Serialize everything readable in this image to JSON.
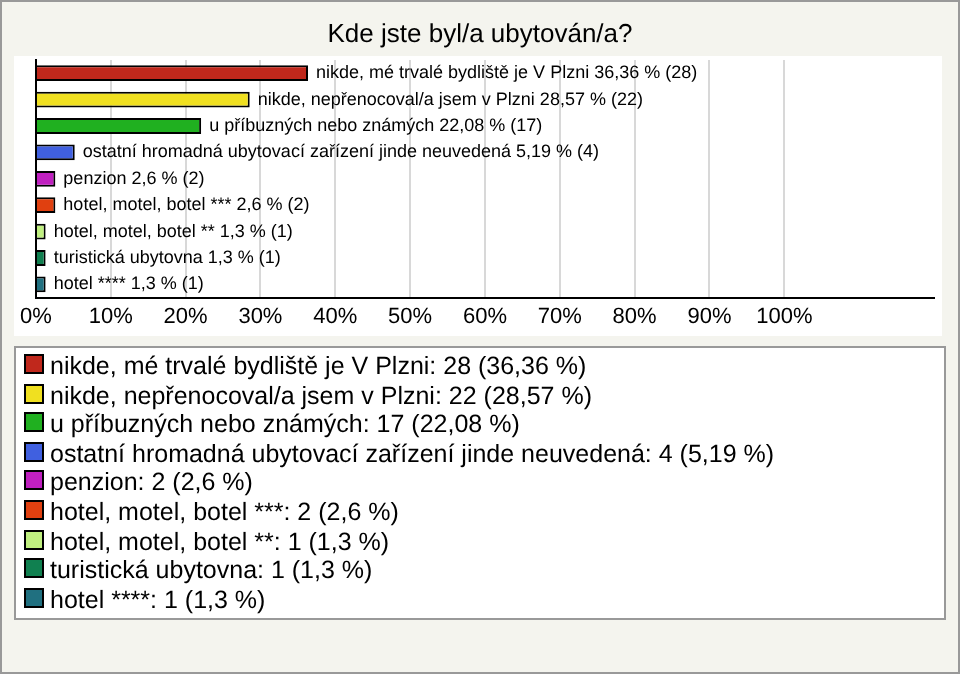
{
  "chart_data": {
    "type": "bar",
    "orientation": "horizontal",
    "stacked": true,
    "title": "Kde jste byl/a ubytován/a?",
    "categories": [
      null,
      null,
      null,
      null,
      null,
      null,
      null,
      null,
      null
    ],
    "series": [
      {
        "name": "nikde, mé trvalé bydliště je V Plzni: 28 (36,36 %)",
        "color": "#c0281c",
        "values": [
          36.36,
          null,
          null,
          null,
          null,
          null,
          null,
          null,
          null
        ],
        "value_labels": [
          "nikde, mé trvalé bydliště je V Plzni 36,36 % (28)",
          null,
          null,
          null,
          null,
          null,
          null,
          null,
          null
        ]
      },
      {
        "name": "nikde, nepřenocoval/a jsem v Plzni: 22 (28,57 %)",
        "color": "#f0e020",
        "values": [
          null,
          28.57,
          null,
          null,
          null,
          null,
          null,
          null,
          null
        ],
        "value_labels": [
          null,
          "nikde, nepřenocoval/a jsem v Plzni 28,57 % (22)",
          null,
          null,
          null,
          null,
          null,
          null,
          null
        ]
      },
      {
        "name": "u příbuzných nebo známých: 17 (22,08 %)",
        "color": "#20b020",
        "values": [
          null,
          null,
          22.08,
          null,
          null,
          null,
          null,
          null,
          null
        ],
        "value_labels": [
          null,
          null,
          "u příbuzných nebo známých 22,08 % (17)",
          null,
          null,
          null,
          null,
          null,
          null
        ]
      },
      {
        "name": "ostatní hromadná ubytovací zařízení jinde neuvedená: 4 (5,19 %)",
        "color": "#4060e0",
        "values": [
          null,
          null,
          null,
          5.19,
          null,
          null,
          null,
          null,
          null
        ],
        "value_labels": [
          null,
          null,
          null,
          "ostatní hromadná ubytovací zařízení jinde neuvedená 5,19 % (4)",
          null,
          null,
          null,
          null,
          null
        ]
      },
      {
        "name": "penzion: 2 (2,6 %)",
        "color": "#c020c0",
        "values": [
          null,
          null,
          null,
          null,
          2.6,
          null,
          null,
          null,
          null
        ],
        "value_labels": [
          null,
          null,
          null,
          null,
          "penzion 2,6 % (2)",
          null,
          null,
          null,
          null
        ]
      },
      {
        "name": "hotel, motel, botel ***: 2 (2,6 %)",
        "color": "#e04010",
        "values": [
          null,
          null,
          null,
          null,
          null,
          2.6,
          null,
          null,
          null
        ],
        "value_labels": [
          null,
          null,
          null,
          null,
          null,
          "hotel, motel, botel *** 2,6 % (2)",
          null,
          null,
          null
        ]
      },
      {
        "name": "hotel, motel, botel **: 1 (1,3 %)",
        "color": "#c0f080",
        "values": [
          null,
          null,
          null,
          null,
          null,
          null,
          1.3,
          null,
          null
        ],
        "value_labels": [
          null,
          null,
          null,
          null,
          null,
          null,
          "hotel, motel, botel ** 1,3 % (1)",
          null,
          null
        ]
      },
      {
        "name": "turistická ubytovna: 1 (1,3 %)",
        "color": "#108050",
        "values": [
          null,
          null,
          null,
          null,
          null,
          null,
          null,
          1.3,
          null
        ],
        "value_labels": [
          null,
          null,
          null,
          null,
          null,
          null,
          null,
          "turistická ubytovna 1,3 % (1)",
          null
        ]
      },
      {
        "name": "hotel ****: 1 (1,3 %)",
        "color": "#207080",
        "values": [
          null,
          null,
          null,
          null,
          null,
          null,
          null,
          null,
          1.3
        ],
        "value_labels": [
          null,
          null,
          null,
          null,
          null,
          null,
          null,
          null,
          "hotel **** 1,3 % (1)"
        ]
      }
    ],
    "xlim": [
      0,
      120
    ],
    "xticks": [
      {
        "value": 0,
        "label": "0%"
      },
      {
        "value": 10,
        "label": "10%"
      },
      {
        "value": 20,
        "label": "20%"
      },
      {
        "value": 30,
        "label": "30%"
      },
      {
        "value": 40,
        "label": "40%"
      },
      {
        "value": 50,
        "label": "50%"
      },
      {
        "value": 60,
        "label": "60%"
      },
      {
        "value": 70,
        "label": "70%"
      },
      {
        "value": 80,
        "label": "80%"
      },
      {
        "value": 90,
        "label": "90%"
      },
      {
        "value": 100,
        "label": "100%"
      }
    ],
    "grid": "x",
    "tick_labels": "x",
    "legend": "bottom"
  }
}
